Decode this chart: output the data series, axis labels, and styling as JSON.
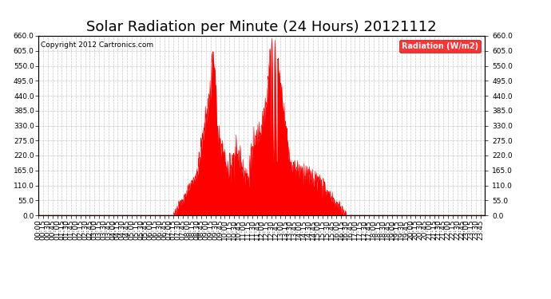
{
  "title": "Solar Radiation per Minute (24 Hours) 20121112",
  "copyright_text": "Copyright 2012 Cartronics.com",
  "legend_label": "Radiation (W/m2)",
  "ylim": [
    0.0,
    660.0
  ],
  "yticks": [
    0.0,
    55.0,
    110.0,
    165.0,
    220.0,
    275.0,
    330.0,
    385.0,
    440.0,
    495.0,
    550.0,
    605.0,
    660.0
  ],
  "fill_color": "#FF0000",
  "line_color": "#FF0000",
  "bg_color": "#FFFFFF",
  "grid_color": "#BBBBBB",
  "title_fontsize": 13,
  "tick_fontsize": 6.5,
  "total_minutes": 1440,
  "figwidth": 6.9,
  "figheight": 3.75,
  "dpi": 100
}
